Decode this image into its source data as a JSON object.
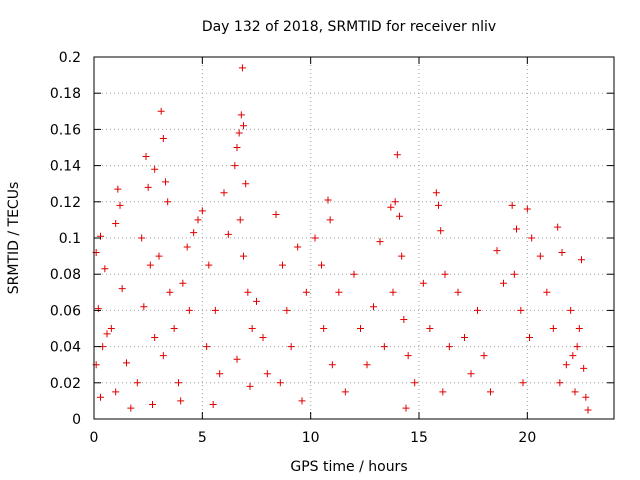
{
  "chart_data": {
    "type": "scatter",
    "title": "Day 132 of 2018, SRMTID for receiver nliv",
    "xlabel": "GPS time / hours",
    "ylabel": "SRMTID / TECUs",
    "xlim": [
      0,
      24
    ],
    "ylim": [
      0,
      0.2
    ],
    "xticks": [
      0,
      5,
      10,
      15,
      20
    ],
    "xtick_labels": [
      "0",
      "5",
      "10",
      "15",
      "20"
    ],
    "yticks": [
      0,
      0.02,
      0.04,
      0.06,
      0.08,
      0.1,
      0.12,
      0.14,
      0.16,
      0.18,
      0.2
    ],
    "ytick_labels": [
      "0",
      "0.02",
      "0.04",
      "0.06",
      "0.08",
      "0.1",
      "0.12",
      "0.14",
      "0.16",
      "0.18",
      "0.2"
    ],
    "grid": true,
    "marker": "+",
    "series": [
      {
        "name": "SRMTID",
        "color": "#e00000",
        "points": [
          [
            0.1,
            0.092
          ],
          [
            0.3,
            0.101
          ],
          [
            0.2,
            0.061
          ],
          [
            0.4,
            0.04
          ],
          [
            0.1,
            0.03
          ],
          [
            0.5,
            0.083
          ],
          [
            0.6,
            0.047
          ],
          [
            0.3,
            0.012
          ],
          [
            1.1,
            0.127
          ],
          [
            1.2,
            0.118
          ],
          [
            1.0,
            0.108
          ],
          [
            1.3,
            0.072
          ],
          [
            0.8,
            0.05
          ],
          [
            1.5,
            0.031
          ],
          [
            1.0,
            0.015
          ],
          [
            1.7,
            0.006
          ],
          [
            2.4,
            0.145
          ],
          [
            2.5,
            0.128
          ],
          [
            2.2,
            0.1
          ],
          [
            2.6,
            0.085
          ],
          [
            2.3,
            0.062
          ],
          [
            2.8,
            0.045
          ],
          [
            2.0,
            0.02
          ],
          [
            2.7,
            0.008
          ],
          [
            2.8,
            0.138
          ],
          [
            3.1,
            0.17
          ],
          [
            3.2,
            0.155
          ],
          [
            3.3,
            0.131
          ],
          [
            3.4,
            0.12
          ],
          [
            3.0,
            0.09
          ],
          [
            3.5,
            0.07
          ],
          [
            3.2,
            0.035
          ],
          [
            3.7,
            0.05
          ],
          [
            3.9,
            0.02
          ],
          [
            4.1,
            0.075
          ],
          [
            4.3,
            0.095
          ],
          [
            4.6,
            0.103
          ],
          [
            4.8,
            0.11
          ],
          [
            4.4,
            0.06
          ],
          [
            4.0,
            0.01
          ],
          [
            5.0,
            0.115
          ],
          [
            5.3,
            0.085
          ],
          [
            5.6,
            0.06
          ],
          [
            5.2,
            0.04
          ],
          [
            5.8,
            0.025
          ],
          [
            5.5,
            0.008
          ],
          [
            6.0,
            0.125
          ],
          [
            6.2,
            0.102
          ],
          [
            6.5,
            0.14
          ],
          [
            6.6,
            0.15
          ],
          [
            6.7,
            0.158
          ],
          [
            6.8,
            0.168
          ],
          [
            6.85,
            0.194
          ],
          [
            6.9,
            0.162
          ],
          [
            7.0,
            0.13
          ],
          [
            6.75,
            0.11
          ],
          [
            6.9,
            0.09
          ],
          [
            7.1,
            0.07
          ],
          [
            7.3,
            0.05
          ],
          [
            6.6,
            0.033
          ],
          [
            7.2,
            0.018
          ],
          [
            7.5,
            0.065
          ],
          [
            7.8,
            0.045
          ],
          [
            8.0,
            0.025
          ],
          [
            8.4,
            0.113
          ],
          [
            8.7,
            0.085
          ],
          [
            8.9,
            0.06
          ],
          [
            9.1,
            0.04
          ],
          [
            8.6,
            0.02
          ],
          [
            9.4,
            0.095
          ],
          [
            9.8,
            0.07
          ],
          [
            9.6,
            0.01
          ],
          [
            10.2,
            0.1
          ],
          [
            10.5,
            0.085
          ],
          [
            10.8,
            0.121
          ],
          [
            10.9,
            0.11
          ],
          [
            10.6,
            0.05
          ],
          [
            11.0,
            0.03
          ],
          [
            11.3,
            0.07
          ],
          [
            11.6,
            0.015
          ],
          [
            12.0,
            0.08
          ],
          [
            12.3,
            0.05
          ],
          [
            12.6,
            0.03
          ],
          [
            12.9,
            0.062
          ],
          [
            13.2,
            0.098
          ],
          [
            13.4,
            0.04
          ],
          [
            13.7,
            0.117
          ],
          [
            13.9,
            0.12
          ],
          [
            14.0,
            0.146
          ],
          [
            14.1,
            0.112
          ],
          [
            14.2,
            0.09
          ],
          [
            13.8,
            0.07
          ],
          [
            14.3,
            0.055
          ],
          [
            14.5,
            0.035
          ],
          [
            14.8,
            0.02
          ],
          [
            14.4,
            0.006
          ],
          [
            15.2,
            0.075
          ],
          [
            15.5,
            0.05
          ],
          [
            15.8,
            0.125
          ],
          [
            15.9,
            0.118
          ],
          [
            16.0,
            0.104
          ],
          [
            16.2,
            0.08
          ],
          [
            16.4,
            0.04
          ],
          [
            16.1,
            0.015
          ],
          [
            16.8,
            0.07
          ],
          [
            17.1,
            0.045
          ],
          [
            17.4,
            0.025
          ],
          [
            17.7,
            0.06
          ],
          [
            18.0,
            0.035
          ],
          [
            18.3,
            0.015
          ],
          [
            18.6,
            0.093
          ],
          [
            18.9,
            0.075
          ],
          [
            19.3,
            0.118
          ],
          [
            19.5,
            0.105
          ],
          [
            19.4,
            0.08
          ],
          [
            19.7,
            0.06
          ],
          [
            20.0,
            0.116
          ],
          [
            20.2,
            0.1
          ],
          [
            20.1,
            0.045
          ],
          [
            19.8,
            0.02
          ],
          [
            20.6,
            0.09
          ],
          [
            20.9,
            0.07
          ],
          [
            21.2,
            0.05
          ],
          [
            21.4,
            0.106
          ],
          [
            21.6,
            0.092
          ],
          [
            21.8,
            0.03
          ],
          [
            22.0,
            0.06
          ],
          [
            22.2,
            0.015
          ],
          [
            22.3,
            0.04
          ],
          [
            22.5,
            0.088
          ],
          [
            22.6,
            0.028
          ],
          [
            22.7,
            0.012
          ],
          [
            22.8,
            0.005
          ],
          [
            22.4,
            0.05
          ],
          [
            22.1,
            0.035
          ],
          [
            21.5,
            0.02
          ]
        ]
      }
    ]
  }
}
